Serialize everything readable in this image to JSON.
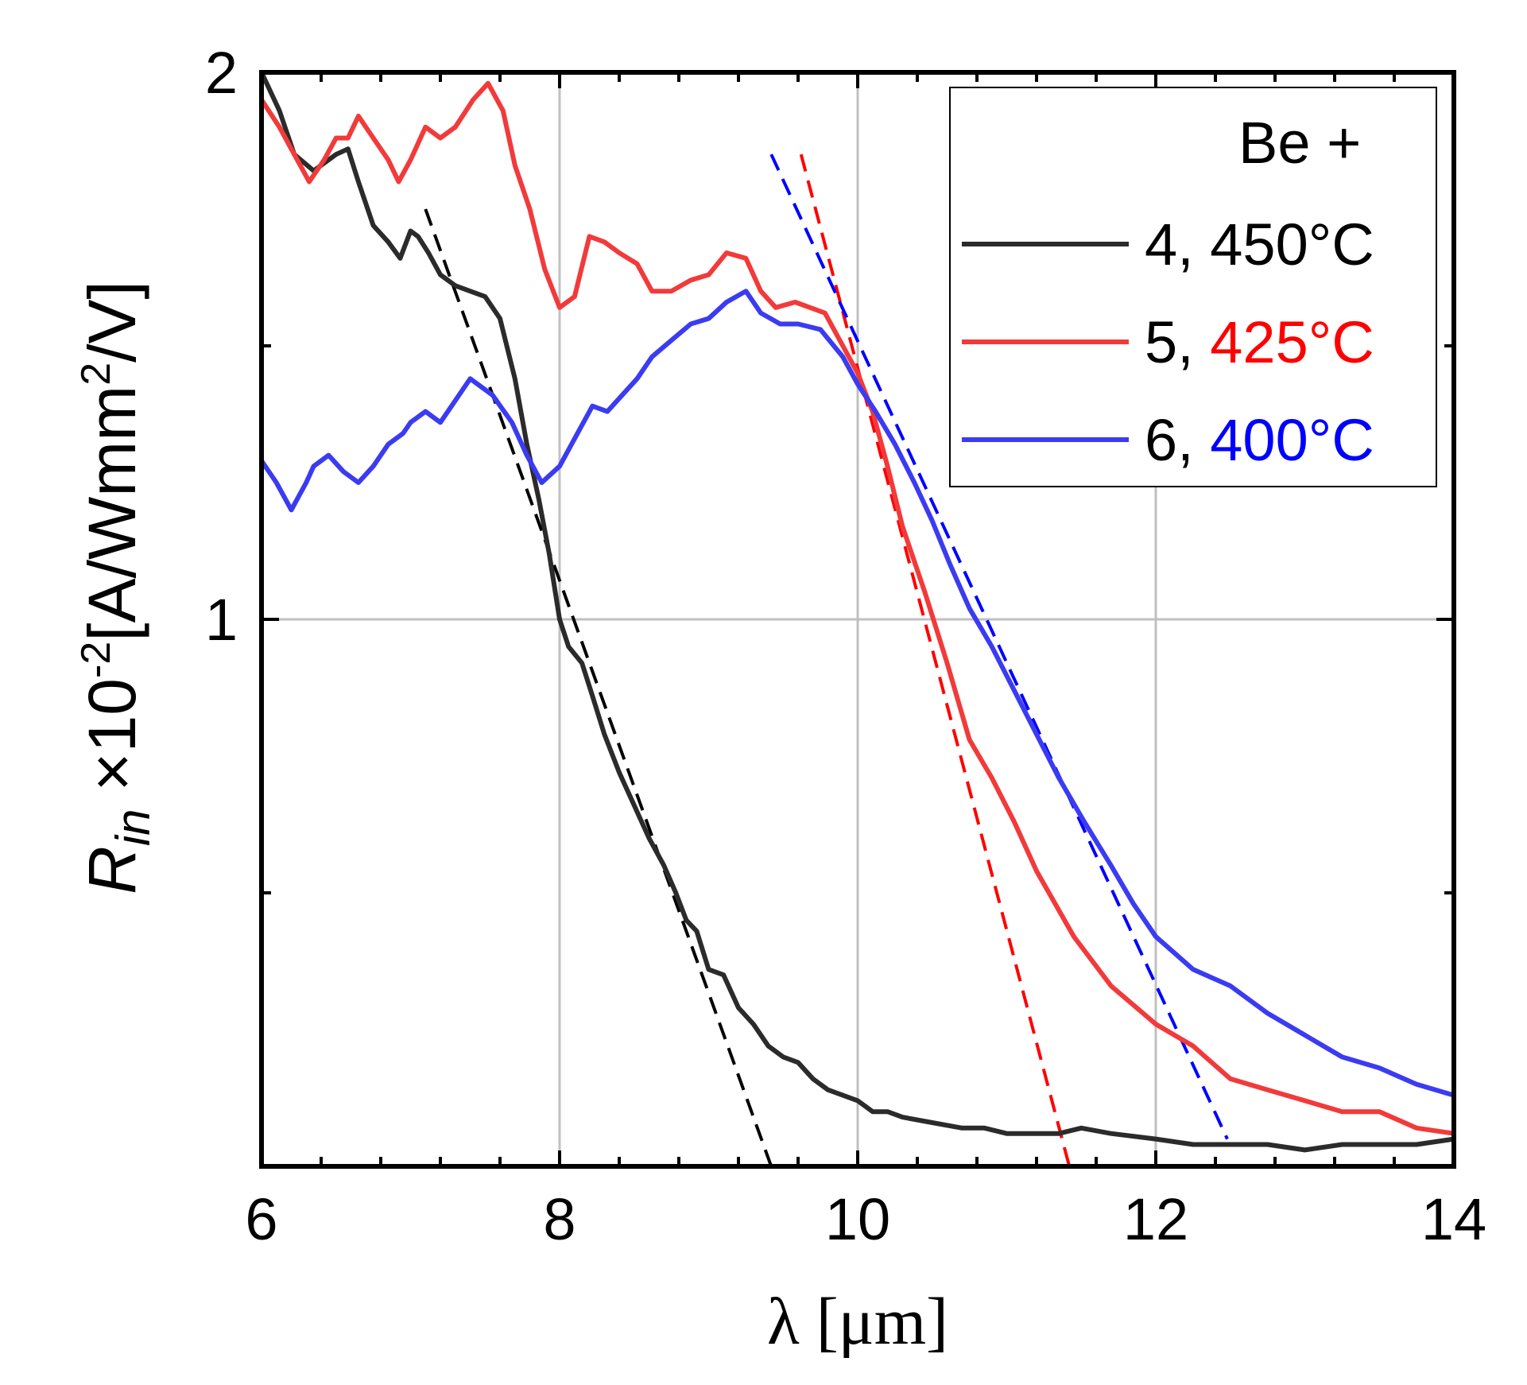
{
  "chart_data": {
    "type": "line",
    "title": "",
    "xlabel": "λ [μm]",
    "ylabel": {
      "symbol": "R",
      "subscript": "in",
      "multiplier": "×10",
      "exponent": "-2",
      "unit_open": "[A/Wmm",
      "unit_exponent": "2",
      "unit_close": "/V]"
    },
    "xlim": [
      6,
      14
    ],
    "ylim": [
      0,
      2
    ],
    "xticks": [
      6,
      8,
      10,
      12,
      14
    ],
    "xtick_labels": [
      "6",
      "8",
      "10",
      "12",
      "14"
    ],
    "yticks": [
      1,
      2
    ],
    "ytick_labels": [
      "1",
      "2"
    ],
    "grid": true,
    "legend": {
      "placement": "top-right",
      "title": "Be +",
      "entries": [
        {
          "prefix": "4, ",
          "label": "450°C",
          "color": "#2b2b2b",
          "label_color": "#000000"
        },
        {
          "prefix": "5, ",
          "label": "425°C",
          "color": "#f23a3a",
          "label_color": "#ff0000"
        },
        {
          "prefix": "6, ",
          "label": "400°C",
          "color": "#3b3bf2",
          "label_color": "#0000ff"
        }
      ]
    },
    "series": [
      {
        "color": "#2b2b2b",
        "x": [
          6.0,
          6.12,
          6.22,
          6.35,
          6.5,
          6.58,
          6.65,
          6.75,
          6.85,
          6.93,
          7.0,
          7.05,
          7.12,
          7.2,
          7.3,
          7.4,
          7.5,
          7.6,
          7.7,
          7.78,
          7.86,
          7.93,
          8.0,
          8.06,
          8.15,
          8.22,
          8.3,
          8.4,
          8.5,
          8.6,
          8.7,
          8.78,
          8.85,
          8.92,
          9.0,
          9.1,
          9.2,
          9.3,
          9.4,
          9.5,
          9.6,
          9.7,
          9.8,
          9.9,
          10.0,
          10.1,
          10.2,
          10.3,
          10.5,
          10.7,
          10.85,
          11.0,
          11.2,
          11.35,
          11.5,
          11.7,
          12.0,
          12.25,
          12.5,
          12.75,
          13.0,
          13.25,
          13.5,
          13.75,
          14.0
        ],
        "y": [
          2.0,
          1.93,
          1.85,
          1.82,
          1.85,
          1.86,
          1.8,
          1.72,
          1.69,
          1.66,
          1.71,
          1.7,
          1.67,
          1.63,
          1.61,
          1.6,
          1.59,
          1.55,
          1.44,
          1.32,
          1.22,
          1.12,
          1.0,
          0.95,
          0.92,
          0.86,
          0.79,
          0.72,
          0.66,
          0.6,
          0.55,
          0.5,
          0.45,
          0.43,
          0.36,
          0.35,
          0.29,
          0.26,
          0.22,
          0.2,
          0.19,
          0.16,
          0.14,
          0.13,
          0.12,
          0.1,
          0.1,
          0.09,
          0.08,
          0.07,
          0.07,
          0.06,
          0.06,
          0.06,
          0.07,
          0.06,
          0.05,
          0.04,
          0.04,
          0.04,
          0.03,
          0.04,
          0.04,
          0.04,
          0.05
        ]
      },
      {
        "color": "#f23a3a",
        "x": [
          6.0,
          6.12,
          6.22,
          6.32,
          6.42,
          6.5,
          6.58,
          6.65,
          6.75,
          6.85,
          6.92,
          7.0,
          7.1,
          7.2,
          7.3,
          7.42,
          7.52,
          7.62,
          7.7,
          7.8,
          7.9,
          8.0,
          8.1,
          8.2,
          8.3,
          8.4,
          8.52,
          8.62,
          8.75,
          8.88,
          9.0,
          9.12,
          9.25,
          9.35,
          9.45,
          9.58,
          9.68,
          9.78,
          9.9,
          10.0,
          10.1,
          10.2,
          10.3,
          10.45,
          10.6,
          10.75,
          10.9,
          11.05,
          11.2,
          11.45,
          11.7,
          12.0,
          12.25,
          12.5,
          12.75,
          13.0,
          13.25,
          13.5,
          13.75,
          14.0
        ],
        "y": [
          1.95,
          1.9,
          1.85,
          1.8,
          1.84,
          1.88,
          1.88,
          1.92,
          1.88,
          1.84,
          1.8,
          1.84,
          1.9,
          1.88,
          1.9,
          1.95,
          1.98,
          1.93,
          1.83,
          1.75,
          1.64,
          1.57,
          1.59,
          1.7,
          1.69,
          1.67,
          1.65,
          1.6,
          1.6,
          1.62,
          1.63,
          1.67,
          1.66,
          1.6,
          1.57,
          1.58,
          1.57,
          1.56,
          1.5,
          1.45,
          1.38,
          1.28,
          1.17,
          1.05,
          0.92,
          0.78,
          0.71,
          0.63,
          0.54,
          0.42,
          0.33,
          0.26,
          0.22,
          0.16,
          0.14,
          0.12,
          0.1,
          0.1,
          0.07,
          0.06
        ]
      },
      {
        "color": "#3b3bf2",
        "x": [
          6.0,
          6.1,
          6.2,
          6.3,
          6.35,
          6.45,
          6.55,
          6.65,
          6.75,
          6.85,
          6.95,
          7.0,
          7.1,
          7.2,
          7.3,
          7.4,
          7.55,
          7.68,
          7.78,
          7.88,
          8.0,
          8.12,
          8.22,
          8.32,
          8.42,
          8.52,
          8.62,
          8.75,
          8.88,
          9.0,
          9.12,
          9.25,
          9.35,
          9.48,
          9.6,
          9.75,
          9.9,
          10.0,
          10.12,
          10.25,
          10.38,
          10.5,
          10.62,
          10.75,
          10.9,
          11.05,
          11.2,
          11.35,
          11.52,
          11.7,
          11.85,
          12.0,
          12.25,
          12.5,
          12.75,
          13.0,
          13.25,
          13.5,
          13.75,
          14.0
        ],
        "y": [
          1.29,
          1.25,
          1.2,
          1.25,
          1.28,
          1.3,
          1.27,
          1.25,
          1.28,
          1.32,
          1.34,
          1.36,
          1.38,
          1.36,
          1.4,
          1.44,
          1.41,
          1.36,
          1.3,
          1.25,
          1.28,
          1.34,
          1.39,
          1.38,
          1.41,
          1.44,
          1.48,
          1.51,
          1.54,
          1.55,
          1.58,
          1.6,
          1.56,
          1.54,
          1.54,
          1.53,
          1.48,
          1.43,
          1.38,
          1.32,
          1.25,
          1.18,
          1.1,
          1.02,
          0.95,
          0.87,
          0.79,
          0.71,
          0.63,
          0.55,
          0.48,
          0.42,
          0.36,
          0.33,
          0.28,
          0.24,
          0.2,
          0.18,
          0.15,
          0.13
        ]
      }
    ],
    "fits": [
      {
        "color": "#000000",
        "x": [
          7.1,
          9.42
        ],
        "y": [
          1.75,
          0.0
        ]
      },
      {
        "color": "#ff0000",
        "x": [
          9.62,
          11.42
        ],
        "y": [
          1.85,
          0.0
        ]
      },
      {
        "color": "#0000ff",
        "x": [
          9.42,
          12.48
        ],
        "y": [
          1.85,
          0.05
        ]
      }
    ]
  }
}
